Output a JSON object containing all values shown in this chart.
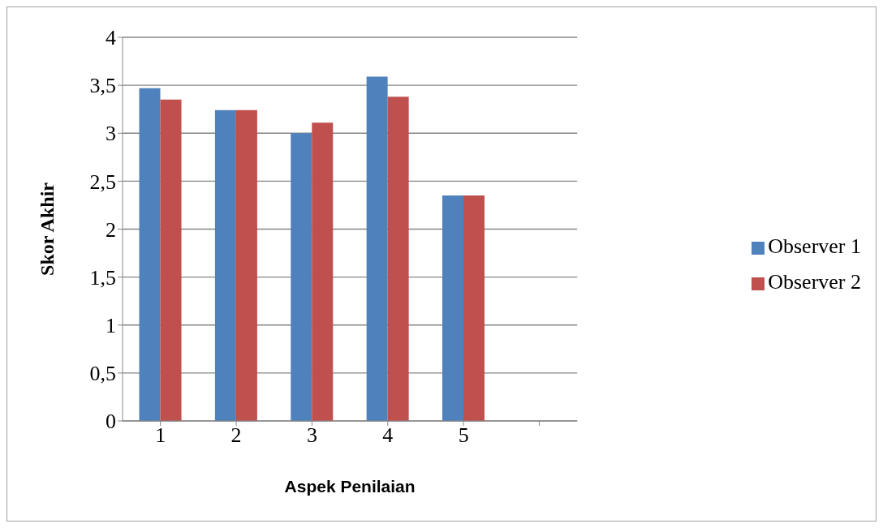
{
  "chart_data": {
    "type": "bar",
    "xlabel": "Aspek Penilaian",
    "ylabel": "Skor Akhir",
    "categories": [
      "1",
      "2",
      "3",
      "4",
      "5",
      null
    ],
    "series": [
      {
        "name": "Observer 1",
        "color": "#4f81bd",
        "values": [
          3.47,
          3.24,
          3.0,
          3.59,
          2.35,
          null
        ]
      },
      {
        "name": "Observer 2",
        "color": "#c0504d",
        "values": [
          3.35,
          3.24,
          3.11,
          3.38,
          2.35,
          null
        ]
      }
    ],
    "ylim": [
      0,
      4
    ],
    "yticks": [
      0,
      {
        "value": 0.5,
        "label": "0,5"
      },
      1,
      {
        "value": 1.5,
        "label": "1,5"
      },
      2,
      {
        "value": 2.5,
        "label": "2,5"
      },
      3,
      {
        "value": 3.5,
        "label": "3,5"
      },
      4
    ],
    "grid": "y",
    "legend": "right"
  }
}
